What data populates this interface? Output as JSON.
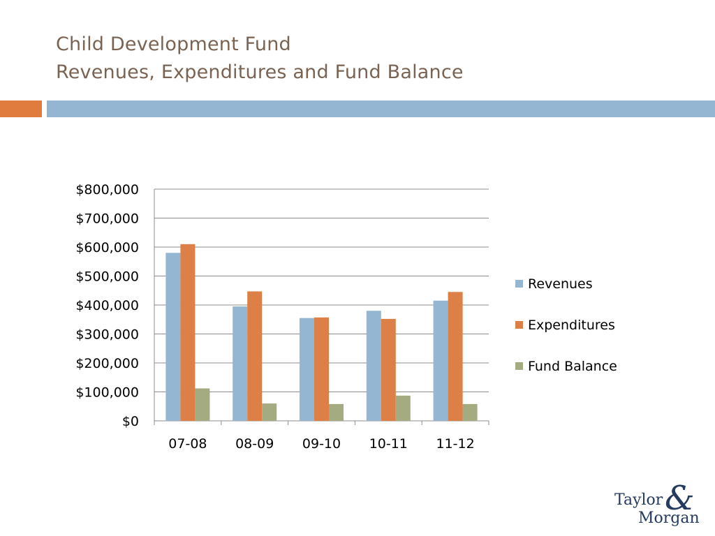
{
  "slide": {
    "title_line1": "Child Development Fund",
    "title_line2": "Revenues, Expenditures and Fund Balance"
  },
  "logo": {
    "line1": "Taylor",
    "ampersand": "&",
    "line2": "Morgan"
  },
  "colors": {
    "title": "#7a6352",
    "accent_orange": "#e07c3e",
    "accent_blue": "#94b6d2"
  },
  "chart_data": {
    "type": "bar",
    "title": "",
    "xlabel": "",
    "ylabel": "",
    "categories": [
      "07-08",
      "08-09",
      "09-10",
      "10-11",
      "11-12"
    ],
    "series": [
      {
        "name": "Revenues",
        "color": "#94b6d2",
        "values": [
          580000,
          395000,
          355000,
          380000,
          415000
        ]
      },
      {
        "name": "Expenditures",
        "color": "#dd8047",
        "values": [
          610000,
          447000,
          357000,
          352000,
          445000
        ]
      },
      {
        "name": "Fund Balance",
        "color": "#a5ab81",
        "values": [
          112000,
          60000,
          58000,
          87000,
          58000
        ]
      }
    ],
    "ylim": [
      0,
      800000
    ],
    "yticks": [
      0,
      100000,
      200000,
      300000,
      400000,
      500000,
      600000,
      700000,
      800000
    ],
    "ytick_labels": [
      "$0",
      "$100,000",
      "$200,000",
      "$300,000",
      "$400,000",
      "$500,000",
      "$600,000",
      "$700,000",
      "$800,000"
    ],
    "grid": true,
    "legend_position": "right"
  }
}
